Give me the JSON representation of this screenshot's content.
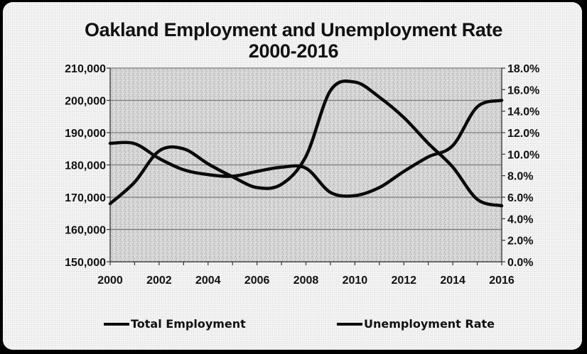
{
  "chart_data": {
    "type": "line",
    "title": "Oakland Employment and Unemployment Rate",
    "subtitle": "2000-2016",
    "x": [
      2000,
      2001,
      2002,
      2003,
      2004,
      2005,
      2006,
      2007,
      2008,
      2009,
      2010,
      2011,
      2012,
      2013,
      2014,
      2015,
      2016
    ],
    "x_tick_labels": [
      "2000",
      "2002",
      "2004",
      "2006",
      "2008",
      "2010",
      "2012",
      "2014",
      "2016"
    ],
    "y_left_tick_labels": [
      "210,000",
      "200,000",
      "190,000",
      "180,000",
      "170,000",
      "160,000",
      "150,000"
    ],
    "y_right_tick_labels": [
      "18.0%",
      "16.0%",
      "14.0%",
      "12.0%",
      "10.0%",
      "8.0%",
      "6.0%",
      "4.0%",
      "2.0%",
      "0.0%"
    ],
    "ylim_left": [
      150000,
      210000
    ],
    "ylim_right": [
      0,
      18
    ],
    "grid": true,
    "legend_position": "bottom",
    "series": [
      {
        "name": "Total Employment",
        "axis": "left",
        "values": [
          186700,
          186600,
          182000,
          178500,
          177000,
          176500,
          178000,
          179300,
          179000,
          171500,
          170500,
          173000,
          178000,
          182500,
          186000,
          198000,
          200000
        ]
      },
      {
        "name": "Unemployment Rate",
        "axis": "right",
        "values": [
          5.4,
          7.4,
          10.3,
          10.5,
          9.1,
          7.9,
          6.9,
          7.2,
          9.8,
          15.9,
          16.7,
          15.3,
          13.4,
          11.0,
          8.8,
          5.8,
          5.2
        ]
      }
    ],
    "colors": {
      "line": "#0a0a0a",
      "plot_background": "#d4d4d4",
      "gridline": "#7a7a7a"
    }
  }
}
